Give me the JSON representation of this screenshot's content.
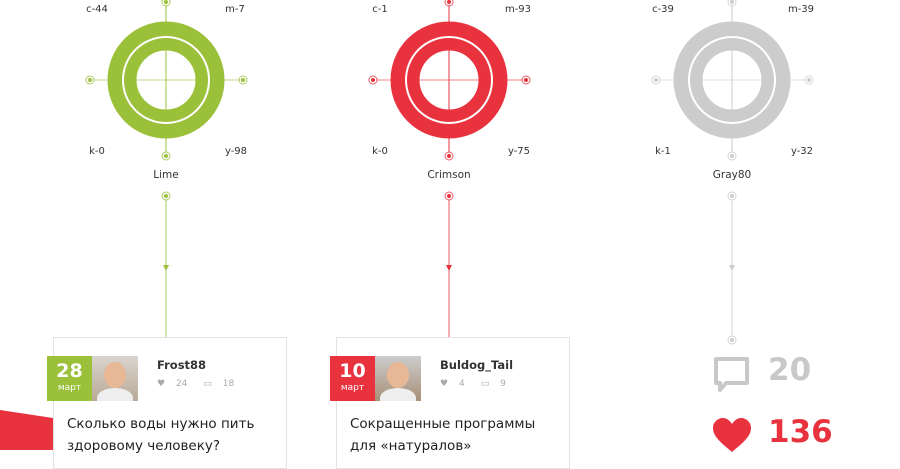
{
  "colors": [
    {
      "name": "Lime",
      "c": "c-44",
      "m": "m-7",
      "y": "y-98",
      "k": "k-0",
      "hex": "#9bc03a"
    },
    {
      "name": "Crimson",
      "c": "c-1",
      "m": "m-93",
      "y": "y-75",
      "k": "k-0",
      "hex": "#e8333f"
    },
    {
      "name": "Gray80",
      "c": "c-39",
      "m": "m-39",
      "y": "y-32",
      "k": "k-1",
      "hex": "#cccccc"
    }
  ],
  "cards": [
    {
      "day": "28",
      "month": "март",
      "user": "Frost88",
      "likes": "24",
      "comments": "18",
      "title": "Сколько воды нужно пить здоровому человеку?",
      "accent": "#9bc03a"
    },
    {
      "day": "10",
      "month": "март",
      "user": "Buldog_Tail",
      "likes": "4",
      "comments": "9",
      "title": "Сокращенные программы для «натуралов»",
      "accent": "#e8333f"
    }
  ],
  "totals": {
    "comments": "20",
    "likes": "136",
    "comment_icon": "speech-bubble-icon",
    "like_icon": "heart-icon",
    "comment_color": "#c8c8c8",
    "like_color": "#e8333f"
  }
}
